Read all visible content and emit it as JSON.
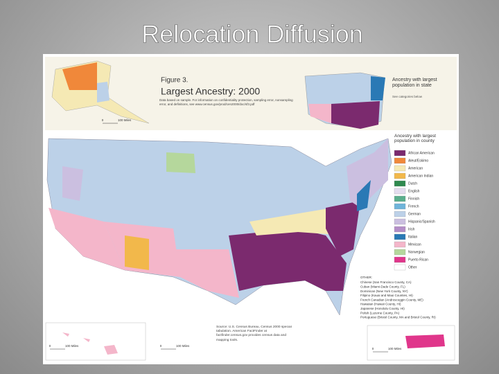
{
  "slide": {
    "title": "Relocation Diffusion"
  },
  "map": {
    "figure_label": "Figure 3.",
    "map_title": "Largest Ancestry: 2000",
    "note": "Data based on sample. For information on confidentiality protection, sampling error, nonsampling error, and definitions, see www.census.gov/prod/cen2000/doc/sf3.pdf",
    "state_inset_title": "Ancestry with largest population in state",
    "state_inset_note": "See categories below",
    "legend_title": "Ancestry with largest population in county",
    "legend": [
      {
        "label": "African American",
        "color": "#7b2a6e"
      },
      {
        "label": "Aleut/Eskimo",
        "color": "#f0883a"
      },
      {
        "label": "American",
        "color": "#f5e9b4"
      },
      {
        "label": "American Indian",
        "color": "#f2b84b"
      },
      {
        "label": "Dutch",
        "color": "#2f8a4f"
      },
      {
        "label": "English",
        "color": "#e4ddef"
      },
      {
        "label": "Finnish",
        "color": "#5aae8c"
      },
      {
        "label": "French",
        "color": "#6fb4da"
      },
      {
        "label": "German",
        "color": "#bcd1e8"
      },
      {
        "label": "Hispanic/Spanish",
        "color": "#cbbfe0"
      },
      {
        "label": "Irish",
        "color": "#b48ec8"
      },
      {
        "label": "Italian",
        "color": "#2a79b5"
      },
      {
        "label": "Mexican",
        "color": "#f4b6ca"
      },
      {
        "label": "Norwegian",
        "color": "#b5d79c"
      },
      {
        "label": "Puerto Rican",
        "color": "#e0368b"
      },
      {
        "label": "Other",
        "color": "#ffffff"
      }
    ],
    "other_title": "OTHER:",
    "other": [
      "Chinese (San Francisco County, CA)",
      "Cuban (Miami-Dade County, FL)",
      "Dominican (New York County, NY)",
      "Filipino (Kauai and Maui Counties, HI)",
      "French Canadian (Androscoggin County, ME)",
      "Hawaiian (Hawaii County, HI)",
      "Japanese (Honolulu County, HI)",
      "Polish (Luzerne County, PA)",
      "Portuguese (Bristol County, MA and Bristol County, RI)"
    ],
    "source": "Source: U.S. Census Bureau, Census 2000 special tabulation. American FactFinder at factfinder.census.gov provides census data and mapping tools.",
    "scale_bars": [
      {
        "start": "0",
        "end": "100 Miles"
      },
      {
        "start": "0",
        "end": "100 Miles"
      },
      {
        "start": "0",
        "end": "100 Miles"
      },
      {
        "start": "0",
        "end": "100 Miles"
      }
    ]
  }
}
